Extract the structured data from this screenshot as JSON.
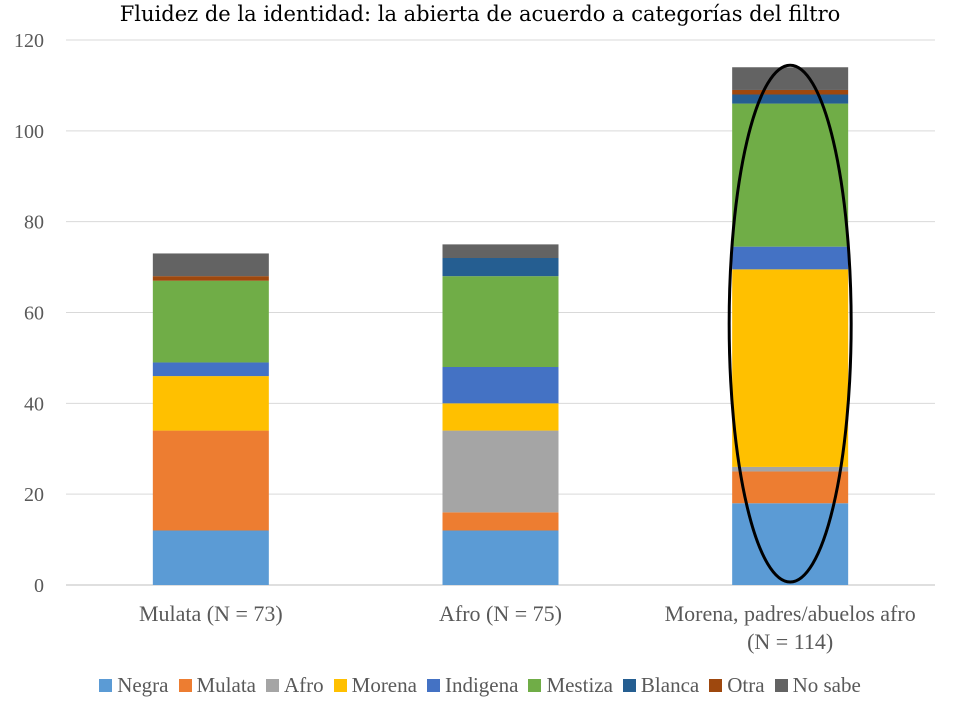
{
  "chart_data": {
    "type": "bar",
    "stacked": true,
    "title": "Fluidez de la identidad: la abierta de acuerdo a categorías del filtro",
    "xlabel": "",
    "ylabel": "",
    "ylim": [
      0,
      120
    ],
    "yticks": [
      "0",
      "20",
      "40",
      "60",
      "80",
      "100",
      "120"
    ],
    "grid": true,
    "legend_position": "bottom",
    "categories": [
      "Mulata (N = 73)",
      "Afro (N = 75)",
      "Morena, padres/abuelos afro (N = 114)"
    ],
    "category_lines": [
      [
        "Mulata (N = 73)"
      ],
      [
        "Afro (N = 75)"
      ],
      [
        "Morena, padres/abuelos afro",
        "(N = 114)"
      ]
    ],
    "series": [
      {
        "name": "Negra",
        "color": "#5B9BD5",
        "values": [
          12,
          12,
          18
        ]
      },
      {
        "name": "Mulata",
        "color": "#ED7D31",
        "values": [
          22,
          4,
          7
        ]
      },
      {
        "name": "Afro",
        "color": "#A5A5A5",
        "values": [
          0,
          18,
          1
        ]
      },
      {
        "name": "Morena",
        "color": "#FFC000",
        "values": [
          12,
          6,
          43.5
        ]
      },
      {
        "name": "Indigena",
        "color": "#4472C4",
        "values": [
          3,
          8,
          5
        ]
      },
      {
        "name": "Mestiza",
        "color": "#70AD47",
        "values": [
          18,
          20,
          31.5
        ]
      },
      {
        "name": "Blanca",
        "color": "#255E91",
        "values": [
          0,
          4,
          2
        ]
      },
      {
        "name": "Otra",
        "color": "#9E480E",
        "values": [
          1,
          0,
          1
        ]
      },
      {
        "name": "No sabe",
        "color": "#636363",
        "values": [
          5,
          3,
          5
        ]
      }
    ],
    "annotations": [
      {
        "type": "ellipse",
        "category_index": 2,
        "color": "#000000"
      }
    ]
  }
}
